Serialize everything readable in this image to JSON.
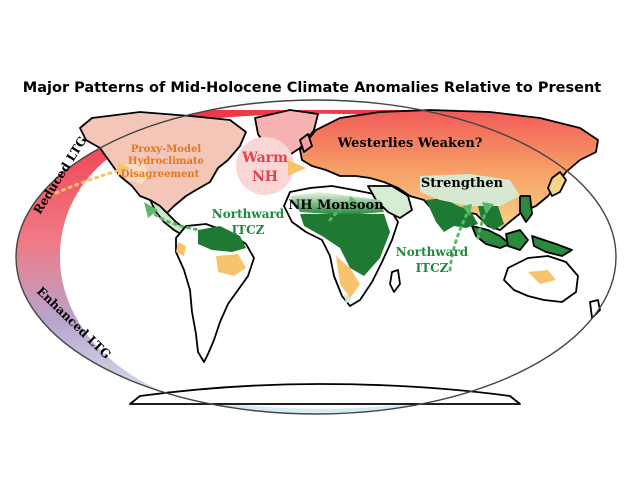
{
  "title": "Major Patterns of Mid-Holocene Climate Anomalies Relative to Present",
  "labels": {
    "reduced_ltg": "Reduced LTG",
    "enhanced_ltg": "Enhanced LTG",
    "proxy_model_1": "Proxy-Model",
    "proxy_model_2": "Hydroclimate",
    "proxy_model_3": "Disagreement",
    "warm_1": "Warm",
    "warm_2": "NH",
    "westerlies": "Westerlies Weaken?",
    "strengthen": "Strengthen",
    "nh_monsoon": "NH Monsoon",
    "itcz_americas_1": "Northward",
    "itcz_americas_2": "ITCZ",
    "itcz_asia_1": "Northward",
    "itcz_asia_2": "ITCZ"
  },
  "colors": {
    "warm_red": "#f03040",
    "enhanced_blue": "#c8e6f2",
    "wet_green": "#1e7a32",
    "dry_orange": "#f6c46c",
    "itcz_text": "#1e8a3c",
    "proxy_text": "#e07820",
    "warm_text": "#e8404c"
  }
}
